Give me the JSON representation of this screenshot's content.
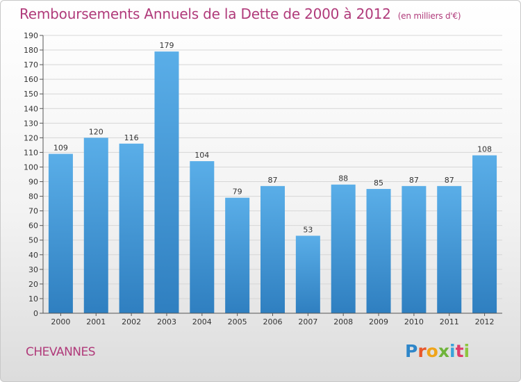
{
  "header": {
    "title": "Remboursements Annuels de la Dette de 2000 à 2012",
    "unit": "(en milliers d'€)"
  },
  "footer": {
    "city": "CHEVANNES",
    "logo_text": "Proxiti"
  },
  "colors": {
    "title": "#b03a7a",
    "bar_top": "#5aaee8",
    "bar_bottom": "#2f7fc0"
  },
  "chart_data": {
    "type": "bar",
    "title": "Remboursements Annuels de la Dette de 2000 à 2012",
    "xlabel": "",
    "ylabel": "",
    "categories": [
      "2000",
      "2001",
      "2002",
      "2003",
      "2004",
      "2005",
      "2006",
      "2007",
      "2008",
      "2009",
      "2010",
      "2011",
      "2012"
    ],
    "values": [
      109,
      120,
      116,
      179,
      104,
      79,
      87,
      53,
      88,
      85,
      87,
      87,
      108
    ],
    "ylim": [
      0,
      190
    ],
    "ytick_step": 10,
    "grid": true,
    "legend": "none"
  }
}
